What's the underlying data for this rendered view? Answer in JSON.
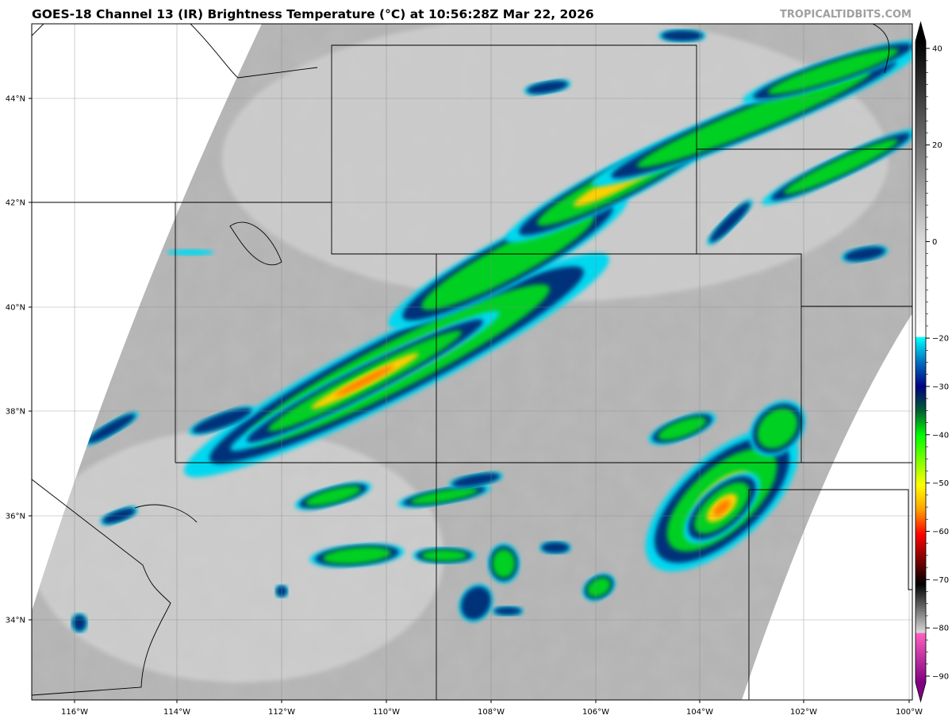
{
  "title": "GOES-18 Channel 13 (IR) Brightness Temperature (°C) at 10:56:28Z Mar 22, 2026",
  "watermark": "TROPICALTIDBITS.COM",
  "map": {
    "longitude_labels": [
      "116°W",
      "114°W",
      "112°W",
      "110°W",
      "108°W",
      "106°W",
      "104°W",
      "102°W",
      "100°W"
    ],
    "latitude_labels": [
      "44°N",
      "42°N",
      "40°N",
      "38°N",
      "36°N",
      "34°N"
    ],
    "gridlines": true
  },
  "colorbar": {
    "range": [
      -90,
      40
    ],
    "tick_labels": [
      "40",
      "20",
      "0",
      "−20",
      "−30",
      "−40",
      "−50",
      "−60",
      "−70",
      "−80",
      "−90"
    ],
    "color_stops": [
      {
        "value": 40,
        "color": "#000000"
      },
      {
        "value": 0,
        "color": "#d8d8d8"
      },
      {
        "value": -19.9,
        "color": "#ffffff"
      },
      {
        "value": -20,
        "color": "#00ffff"
      },
      {
        "value": -25,
        "color": "#0070c0"
      },
      {
        "value": -30,
        "color": "#000080"
      },
      {
        "value": -35,
        "color": "#006030"
      },
      {
        "value": -40,
        "color": "#00ff00"
      },
      {
        "value": -50,
        "color": "#ffff00"
      },
      {
        "value": -55,
        "color": "#ffa000"
      },
      {
        "value": -60,
        "color": "#ff0000"
      },
      {
        "value": -65,
        "color": "#800000"
      },
      {
        "value": -70,
        "color": "#000000"
      },
      {
        "value": -79.9,
        "color": "#d8d8d8"
      },
      {
        "value": -80,
        "color": "#ff60c0"
      },
      {
        "value": -90,
        "color": "#800080"
      }
    ]
  }
}
